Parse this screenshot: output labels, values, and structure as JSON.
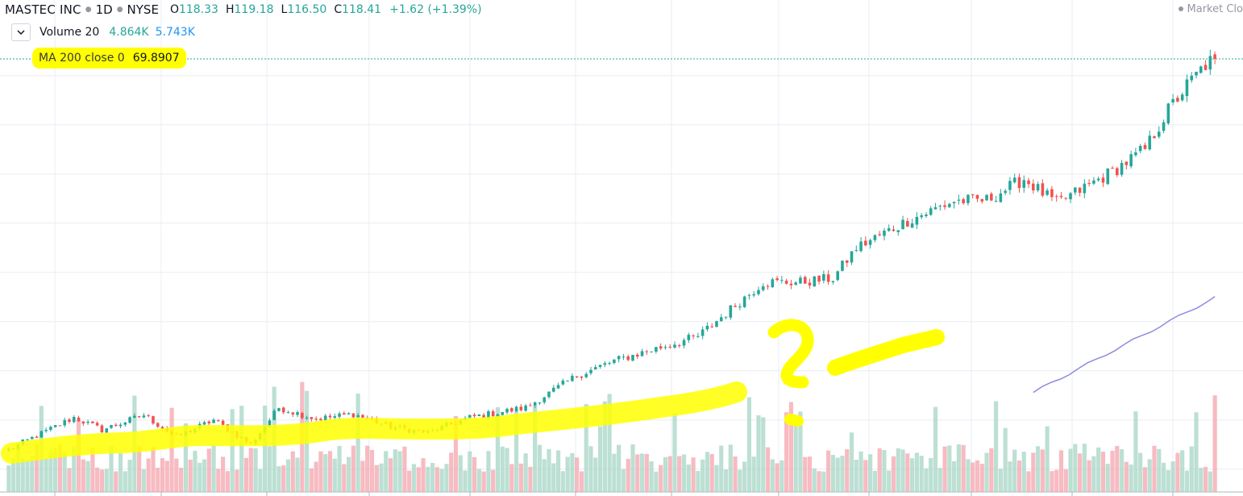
{
  "header": {
    "ticker": "MASTEC INC",
    "interval": "1D",
    "exchange": "NYSE",
    "ohlc": [
      {
        "key": "O",
        "value": "118.33"
      },
      {
        "key": "H",
        "value": "119.18"
      },
      {
        "key": "L",
        "value": "116.50"
      },
      {
        "key": "C",
        "value": "118.41"
      }
    ],
    "change": "+1.62 (+1.39%)",
    "market_status": "Market Clo"
  },
  "indicators": {
    "volume": {
      "label": "Volume 20",
      "value1": "4.864K",
      "value2": "5.743K"
    },
    "ma": {
      "label": "MA 200 close 0",
      "value": "69.8907"
    }
  },
  "colors": {
    "up": "#26a69a",
    "down": "#ef5350",
    "up_volume": "#a5d6c4",
    "down_volume": "#f4a4ad",
    "ma_line": "#8c8ce0",
    "highlight": "#ffff00",
    "grid": "#e9edf3",
    "last_price_line": "#26a69a"
  },
  "chart_data": {
    "type": "candlestick",
    "title": "MASTEC INC · 1D · NYSE",
    "series": [
      {
        "name": "MASTEC INC",
        "kind": "candles",
        "start": 39,
        "end": 119,
        "keypoints": [
          [
            0,
            39
          ],
          [
            14,
            45.5
          ],
          [
            20,
            43
          ],
          [
            29,
            46
          ],
          [
            36,
            41.5
          ],
          [
            44,
            45
          ],
          [
            52,
            40
          ],
          [
            58,
            47.5
          ],
          [
            66,
            45.2
          ],
          [
            74,
            46.2
          ],
          [
            82,
            43.6
          ],
          [
            90,
            42.4
          ],
          [
            99,
            45.5
          ],
          [
            111,
            47.5
          ],
          [
            122,
            54
          ],
          [
            130,
            57
          ],
          [
            139,
            59.5
          ],
          [
            148,
            62
          ],
          [
            162,
            73
          ],
          [
            170,
            73
          ],
          [
            177,
            73.8
          ],
          [
            182,
            80
          ],
          [
            193,
            85.5
          ],
          [
            203,
            89.5
          ],
          [
            210,
            89.7
          ],
          [
            218,
            94
          ],
          [
            225,
            89
          ],
          [
            237,
            95.5
          ],
          [
            244,
            100
          ],
          [
            249,
            108
          ],
          [
            253,
            113
          ],
          [
            257,
            117.2
          ],
          [
            259,
            118.41
          ]
        ]
      },
      {
        "name": "Volume 20",
        "kind": "volume",
        "avg": "4.864K"
      },
      {
        "name": "MA 200 close 0",
        "kind": "line",
        "x": [
          220,
          259
        ],
        "y": [
          50.6,
          69.89
        ]
      }
    ],
    "bars": 260,
    "ylim": [
      32,
      122.5
    ],
    "last_price": 118.41,
    "grid": true,
    "annotations": [
      "highlighter-stroke",
      "question-mark",
      "dash"
    ]
  }
}
